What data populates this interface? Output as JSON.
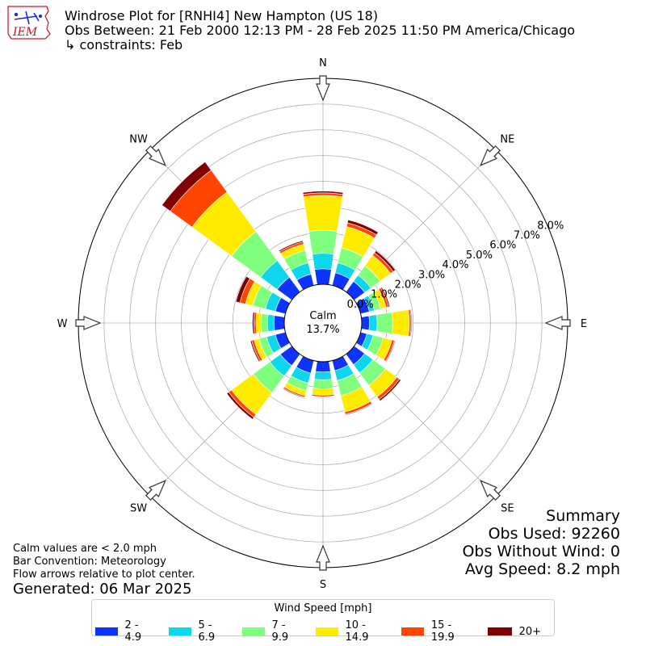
{
  "header": {
    "line1": "Windrose Plot for [RNHI4] New Hampton (US 18)",
    "line2": "Obs Between: 21 Feb 2000 12:13 PM - 28 Feb 2025 11:50 PM America/Chicago",
    "line3": "↳ constraints: Feb",
    "logo_text": "IEM"
  },
  "chart_data": {
    "type": "windrose",
    "directions": [
      "N",
      "NNE",
      "NE",
      "ENE",
      "E",
      "ESE",
      "SE",
      "SSE",
      "S",
      "SSW",
      "SW",
      "WSW",
      "W",
      "WNW",
      "NW",
      "NNW"
    ],
    "compass_labels": [
      "N",
      "NE",
      "E",
      "SE",
      "S",
      "SW",
      "W",
      "NW"
    ],
    "radial_ticks": [
      "0.0%",
      "1.0%",
      "2.0%",
      "3.0%",
      "4.0%",
      "5.0%",
      "6.0%",
      "7.0%",
      "8.0%"
    ],
    "r_max": 8.0,
    "grid": true,
    "calm_label": "Calm",
    "calm_value": "13.7%",
    "bins": [
      {
        "label": "2 - 4.9",
        "color": "#0c33ff"
      },
      {
        "label": "5 - 6.9",
        "color": "#0ed6ec"
      },
      {
        "label": "7 - 9.9",
        "color": "#80ff7e"
      },
      {
        "label": "10 - 14.9",
        "color": "#ffeb00"
      },
      {
        "label": "15 - 19.9",
        "color": "#ff4500"
      },
      {
        "label": "20+",
        "color": "#7f0000"
      }
    ],
    "cumulative": [
      [
        0.6,
        1.2,
        2.1,
        3.45,
        3.55,
        3.62
      ],
      [
        0.5,
        0.9,
        1.5,
        2.35,
        2.5,
        2.62
      ],
      [
        0.5,
        0.8,
        1.25,
        1.75,
        1.88,
        1.98
      ],
      [
        0.35,
        0.55,
        0.8,
        1.02,
        1.12,
        1.17
      ],
      [
        0.3,
        0.6,
        1.2,
        1.85,
        1.92,
        1.95
      ],
      [
        0.25,
        0.5,
        0.9,
        1.25,
        1.35,
        1.38
      ],
      [
        0.5,
        0.9,
        1.5,
        2.05,
        2.18,
        2.25
      ],
      [
        0.4,
        0.8,
        1.4,
        2.05,
        2.15,
        2.18
      ],
      [
        0.4,
        0.7,
        1.05,
        1.3,
        1.36,
        1.38
      ],
      [
        0.5,
        0.9,
        1.2,
        1.4,
        1.46,
        1.49
      ],
      [
        0.55,
        1.05,
        1.85,
        2.9,
        3.04,
        3.13
      ],
      [
        0.4,
        0.75,
        1.05,
        1.25,
        1.35,
        1.4
      ],
      [
        0.4,
        0.65,
        0.9,
        1.1,
        1.18,
        1.24
      ],
      [
        0.4,
        0.8,
        1.3,
        1.6,
        1.82,
        1.98
      ],
      [
        0.7,
        1.5,
        2.9,
        4.8,
        5.85,
        6.25
      ],
      [
        0.45,
        0.9,
        1.4,
        1.65,
        1.74,
        1.79
      ]
    ]
  },
  "notes": {
    "line1": "Calm values are < 2.0 mph",
    "line2": "Bar Convention: Meteorology",
    "line3": "Flow arrows relative to plot center.",
    "generated": "Generated: 06 Mar 2025"
  },
  "summary": {
    "title": "Summary",
    "obs_used": "Obs Used: 92260",
    "obs_without_wind": "Obs Without Wind: 0",
    "avg_speed": "Avg Speed: 8.2 mph"
  },
  "legend": {
    "title": "Wind Speed [mph]"
  }
}
